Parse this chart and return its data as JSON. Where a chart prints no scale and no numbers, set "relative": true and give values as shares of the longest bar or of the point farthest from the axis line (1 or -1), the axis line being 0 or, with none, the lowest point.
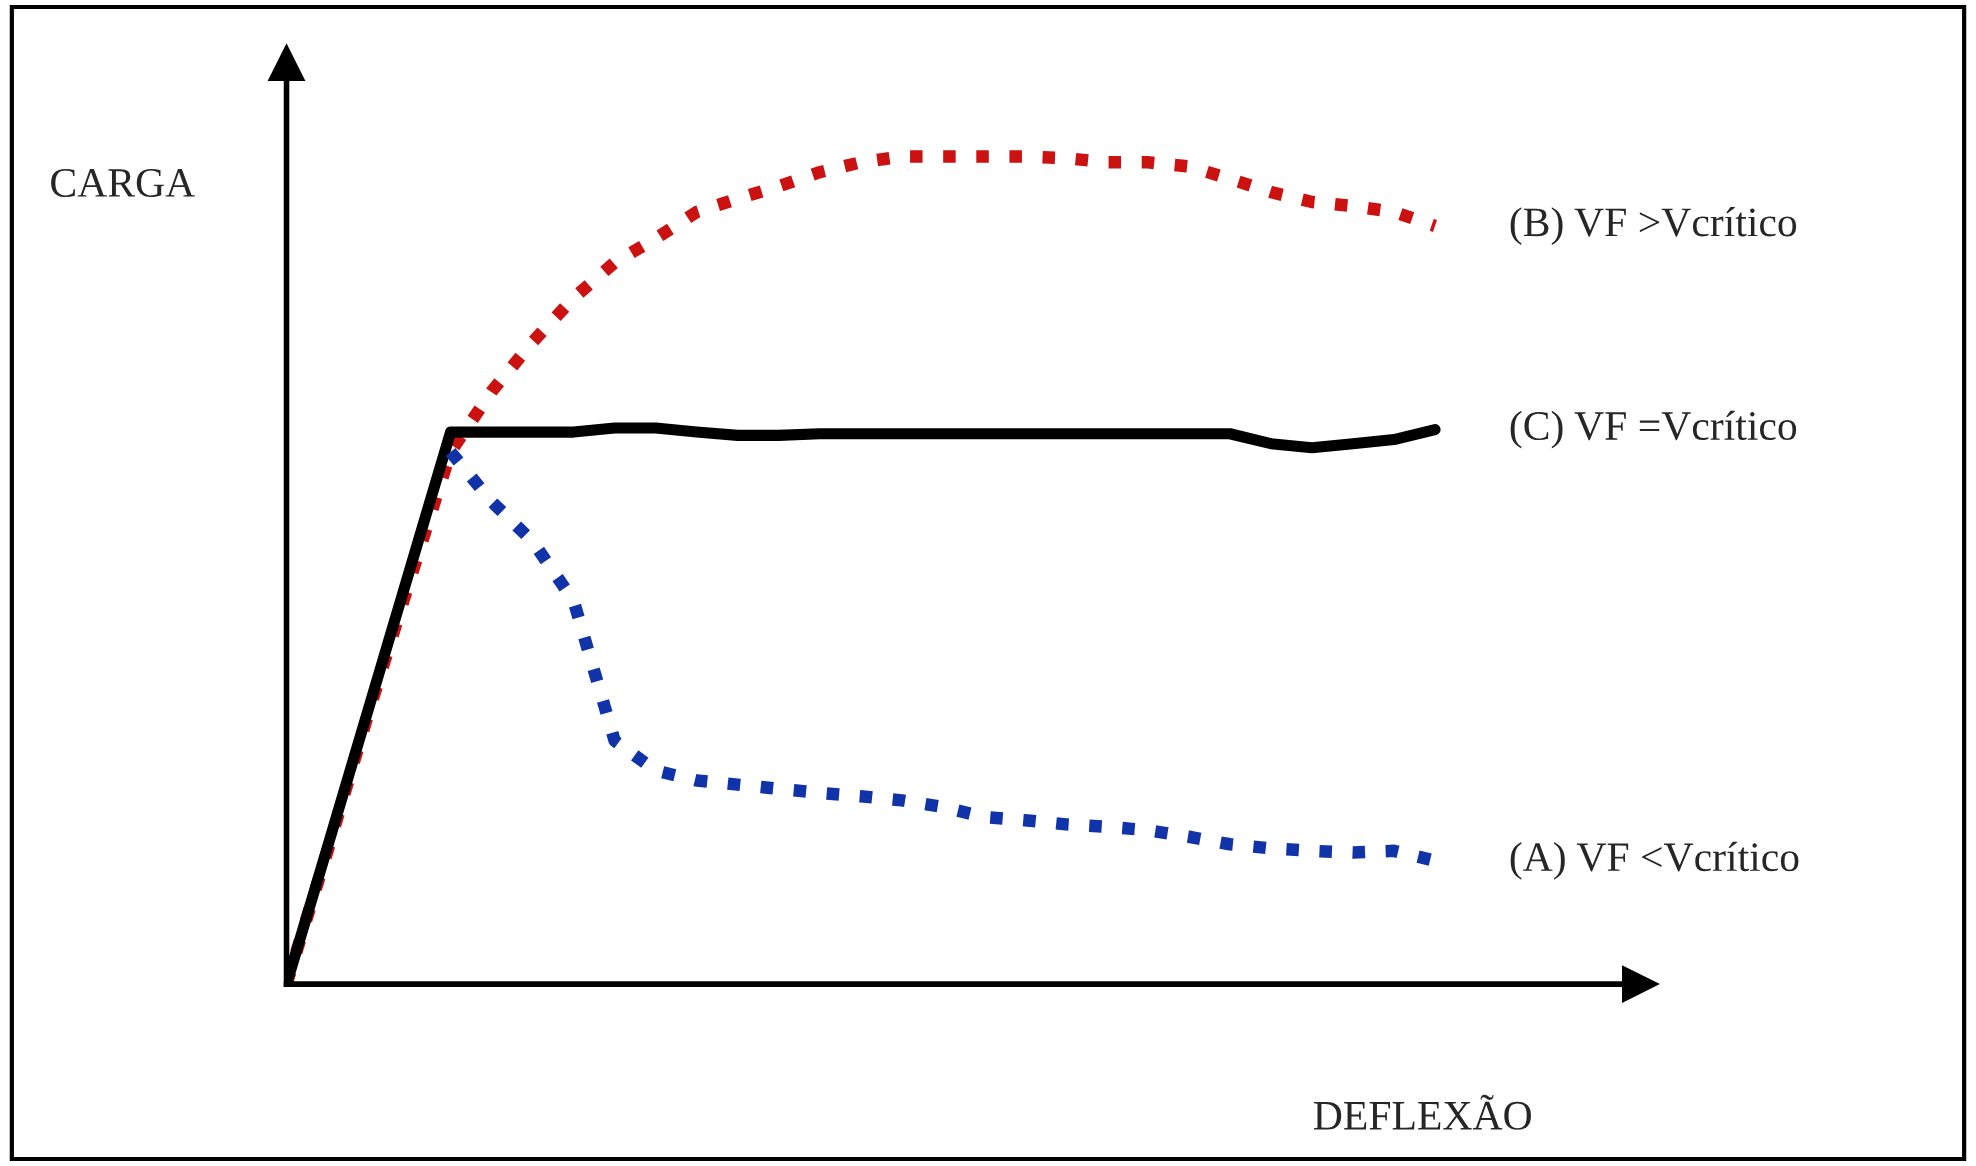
{
  "chart_data": {
    "type": "line",
    "relative": true,
    "xlabel": "DEFLEXÃO",
    "ylabel": "CARGA",
    "legend": false,
    "categories": [
      null,
      null,
      null,
      null,
      null,
      null,
      null,
      null,
      null,
      null,
      null,
      null,
      null,
      null,
      null,
      null,
      null,
      null,
      null,
      null,
      null,
      null,
      null,
      null,
      null,
      null,
      null,
      null,
      null
    ],
    "series": [
      {
        "name": "(B) VF >Vcrítico",
        "color": "#cc1111",
        "line_style": "dotted",
        "values": [
          0,
          0.161,
          0.328,
          0.487,
          0.643,
          0.716,
          0.776,
          0.829,
          0.872,
          0.901,
          0.933,
          0.949,
          0.964,
          0.981,
          0.993,
          1,
          1,
          1,
          1,
          0.998,
          0.993,
          0.993,
          0.988,
          0.973,
          0.957,
          0.945,
          0.94,
          0.933,
          0.916
        ]
      },
      {
        "name": "(C) VF =Vcrítico",
        "color": "#000000",
        "line_style": "solid",
        "values": [
          0,
          0.166,
          0.333,
          0.5,
          0.667,
          0.667,
          0.667,
          0.667,
          0.672,
          0.672,
          0.667,
          0.663,
          0.663,
          0.665,
          0.665,
          0.665,
          0.665,
          0.665,
          0.665,
          0.665,
          0.665,
          0.665,
          0.665,
          0.665,
          0.653,
          0.648,
          0.653,
          0.658,
          0.67
        ]
      },
      {
        "name": "(A) VF <Vcrítico",
        "color": "#1133aa",
        "line_style": "dotted",
        "values": [
          null,
          null,
          null,
          null,
          0.643,
          0.583,
          0.535,
          0.463,
          0.294,
          0.258,
          0.246,
          0.241,
          0.236,
          0.231,
          0.227,
          0.222,
          0.214,
          0.202,
          0.198,
          0.193,
          0.19,
          0.186,
          0.178,
          0.169,
          0.164,
          0.161,
          0.159,
          0.161,
          0.149
        ]
      }
    ]
  }
}
